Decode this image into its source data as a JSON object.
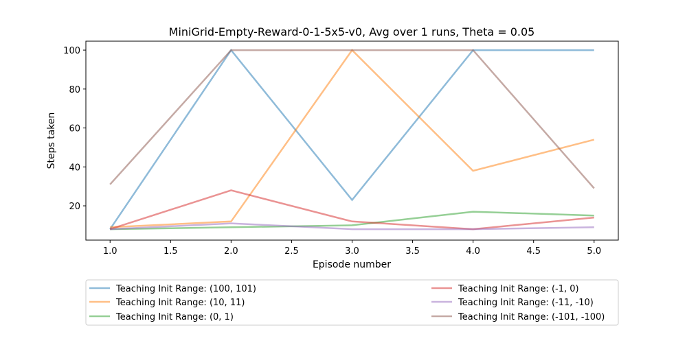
{
  "chart_data": {
    "type": "line",
    "title": "MiniGrid-Empty-Reward-0-1-5x5-v0, Avg over 1 runs, Theta = 0.05",
    "xlabel": "Episode number",
    "ylabel": "Steps taken",
    "xlim": [
      0.8,
      5.2
    ],
    "ylim": [
      2.4,
      104.6
    ],
    "xticks": [
      1.0,
      1.5,
      2.0,
      2.5,
      3.0,
      3.5,
      4.0,
      4.5,
      5.0
    ],
    "xtick_labels": [
      "1.0",
      "1.5",
      "2.0",
      "2.5",
      "3.0",
      "3.5",
      "4.0",
      "4.5",
      "5.0"
    ],
    "yticks": [
      20,
      40,
      60,
      80,
      100
    ],
    "ytick_labels": [
      "20",
      "40",
      "60",
      "80",
      "100"
    ],
    "grid": false,
    "legend_position": "bottom",
    "x": [
      1,
      2,
      3,
      4,
      5
    ],
    "series": [
      {
        "name": "Teaching Init Range: (100, 101)",
        "color": "#1f77b4",
        "values": [
          8,
          100,
          23,
          100,
          100
        ]
      },
      {
        "name": "Teaching Init Range: (10, 11)",
        "color": "#ff7f0e",
        "values": [
          9,
          12,
          100,
          38,
          54
        ]
      },
      {
        "name": "Teaching Init Range: (0, 1)",
        "color": "#2ca02c",
        "values": [
          8,
          9,
          10,
          17,
          15
        ]
      },
      {
        "name": "Teaching Init Range: (-1, 0)",
        "color": "#d62728",
        "values": [
          8,
          28,
          12,
          8,
          14
        ]
      },
      {
        "name": "Teaching Init Range: (-11, -10)",
        "color": "#9467bd",
        "values": [
          8,
          11,
          8,
          8,
          9
        ]
      },
      {
        "name": "Teaching Init Range: (-101, -100)",
        "color": "#8c564b",
        "values": [
          31,
          100,
          100,
          100,
          29
        ]
      }
    ]
  }
}
